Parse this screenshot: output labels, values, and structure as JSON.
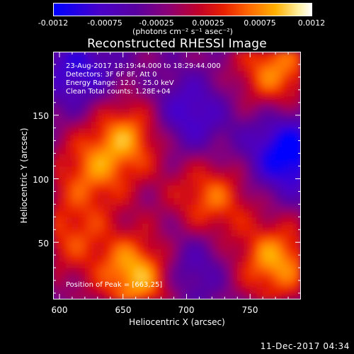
{
  "colorbar": {
    "tick_labels": [
      "-0.0012",
      "-0.00075",
      "-0.00025",
      "0.00025",
      "0.00075",
      "0.0012"
    ],
    "unit_label": "(photons cm⁻² s⁻¹ asec⁻²)",
    "colors": [
      "#0000ff",
      "#5a00a0",
      "#c0002a",
      "#ff6a00",
      "#ffb000",
      "#ffffff"
    ]
  },
  "header": {
    "title": "Reconstructed RHESSI Image"
  },
  "annotations": {
    "time_range": "23-Aug-2017 18:19:44.000 to 18:29:44.000",
    "detectors": "Detectors: 3F 6F 8F, Att 0",
    "energy": "Energy Range: 12.0 - 25.0 keV",
    "method": "Clean    Total counts: 1.28E+04",
    "peak": "Position of Peak = [663,25]"
  },
  "footer": {
    "datetime": "11-Dec-2017 04:34"
  },
  "chart_data": {
    "type": "heatmap",
    "title": "Reconstructed RHESSI Image",
    "xlabel": "Heliocentric X (arcsec)",
    "ylabel": "Heliocentric Y (arcsec)",
    "xlim": [
      595,
      790
    ],
    "ylim": [
      5,
      200
    ],
    "x_ticks": [
      "600",
      "650",
      "700",
      "750"
    ],
    "y_ticks": [
      "50",
      "100",
      "150"
    ],
    "colorbar_range": [
      -0.0012,
      0.0012
    ],
    "peak_position": [
      663,
      25
    ],
    "emission_regions": [
      {
        "x": 655,
        "y": 135,
        "level": 0.0009
      },
      {
        "x": 625,
        "y": 105,
        "level": 0.0007
      },
      {
        "x": 663,
        "y": 25,
        "level": 0.0012
      },
      {
        "x": 720,
        "y": 85,
        "level": 0.0008
      },
      {
        "x": 770,
        "y": 35,
        "level": 0.001
      },
      {
        "x": 770,
        "y": 185,
        "level": 0.0009
      },
      {
        "x": 610,
        "y": 55,
        "level": 0.0006
      }
    ],
    "negative_regions": [
      {
        "x": 780,
        "y": 120,
        "level": -0.0011
      },
      {
        "x": 700,
        "y": 150,
        "level": -0.0007
      },
      {
        "x": 700,
        "y": 30,
        "level": -0.0006
      },
      {
        "x": 615,
        "y": 185,
        "level": -0.0007
      }
    ],
    "grid": false
  }
}
